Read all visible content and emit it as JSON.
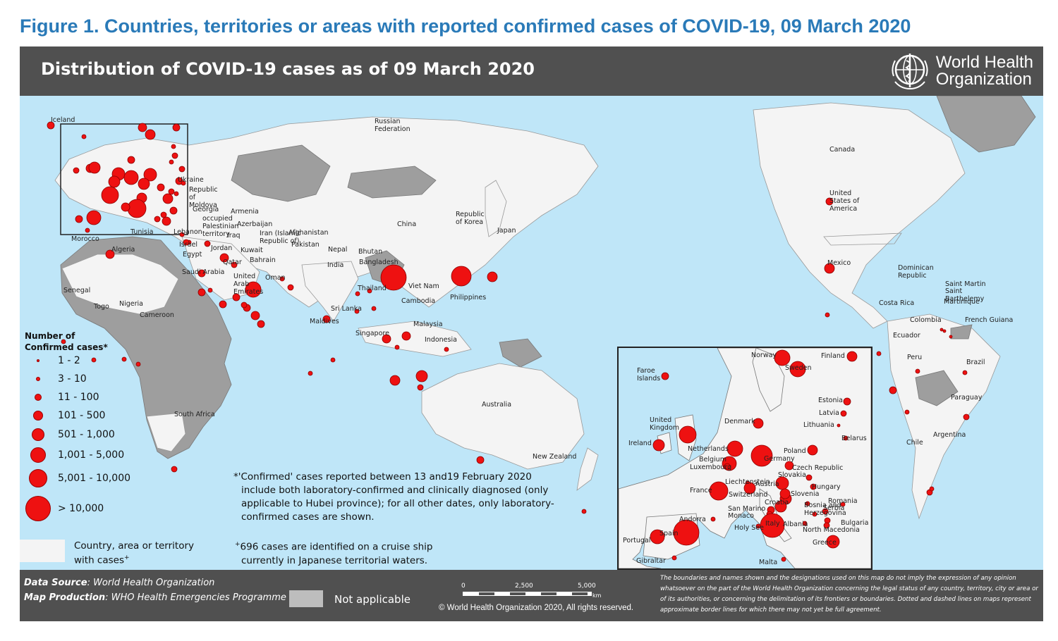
{
  "figure_title": "Figure 1. Countries, territories or areas with reported confirmed cases of COVID-19, 09 March 2020",
  "map_title": "Distribution of COVID-19 cases as of 09 March 2020",
  "logo": {
    "line1": "World Health",
    "line2": "Organization"
  },
  "colors": {
    "ocean": "#bfe6f8",
    "land_cases": "#f4f4f4",
    "land_na": "#9e9e9e",
    "header": "#505050",
    "bubble": "#ee1111",
    "title": "#2a7ab8"
  },
  "legend": {
    "title_line1": "Number of",
    "title_line2": "Confirmed cases*",
    "classes": [
      {
        "label": "1 - 2",
        "icon": "bubble-icon"
      },
      {
        "label": "3 - 10",
        "icon": "bubble-icon"
      },
      {
        "label": "11 - 100",
        "icon": "bubble-icon"
      },
      {
        "label": "101 - 500",
        "icon": "bubble-icon"
      },
      {
        "label": "501 - 1,000",
        "icon": "bubble-icon"
      },
      {
        "label": "1,001 - 5,000",
        "icon": "bubble-icon"
      },
      {
        "label": "5,001 - 10,000",
        "icon": "bubble-icon"
      },
      {
        "label": "> 10,000",
        "icon": "bubble-icon"
      }
    ],
    "with_cases_line1": "Country, area or territory",
    "with_cases_line2": "with cases",
    "with_cases_sup": "+"
  },
  "note_confirmed": {
    "line1": "*'Confirmed' cases reported between 13 and19 February 2020",
    "line2": "include both laboratory-confirmed and clinically diagnosed (only",
    "line3": "applicable to Hubei province); for all other dates, only laboratory-",
    "line4": "confirmed cases are shown."
  },
  "note_cruise": {
    "sup": "+",
    "line1": "696 cases are identified on a cruise ship",
    "line2": "currently in Japanese territorial waters."
  },
  "footer": {
    "source_label": "Data Source",
    "source_value": ": World Health Organization",
    "production_label": "Map Production",
    "production_value": ": WHO Health Emergencies Programme",
    "not_applicable": "Not applicable",
    "scale_0": "0",
    "scale_2500": "2,500",
    "scale_5000": "5,000",
    "scale_unit": "km",
    "copyright": "© World Health Organization 2020, All rights reserved.",
    "disclaimer": "The boundaries and names shown and the designations used on this map do not imply the expression of any opinion whatsoever on the part of the World Health Organization concerning the legal status of any country, territory, city or area or of its authorities, or concerning the delimitation of its frontiers or boundaries. Dotted and dashed lines on maps represent approximate border lines for which there may not yet be full agreement."
  },
  "world_labels": {
    "iceland": "Iceland",
    "russia": "Russian Federation",
    "canada": "Canada",
    "usa": "United States of America",
    "mexico": "Mexico",
    "dominican": "Dominican Republic",
    "saint_martin": "Saint Martin",
    "saint_barthelemy": "Saint Barthelemy",
    "martinique": "Martinique",
    "costa_rica": "Costa Rica",
    "colombia": "Colombia",
    "french_guiana": "French Guiana",
    "ecuador": "Ecuador",
    "peru": "Peru",
    "brazil": "Brazil",
    "paraguay": "Paraguay",
    "chile": "Chile",
    "argentina": "Argentina",
    "ukraine": "Ukraine",
    "moldova": "Republic of Moldova",
    "georgia": "Georgia",
    "armenia": "Armenia",
    "azerbaijan": "Azerbaijan",
    "palestine": "occupied Palestinian territory",
    "iraq": "Iraq",
    "iran": "Iran (Islamic Republic of)",
    "afghanistan": "Afghanistan",
    "pakistan": "Pakistan",
    "nepal": "Nepal",
    "bhutan": "Bhutan",
    "india": "India",
    "bangladesh": "Bangladesh",
    "tunisia": "Tunisia",
    "lebanon": "Lebanon",
    "israel": "Israel",
    "egypt": "Egypt",
    "jordan": "Jordan",
    "kuwait": "Kuwait",
    "qatar": "Qatar",
    "bahrain": "Bahrain",
    "saudi": "Saudi Arabia",
    "uae": "United Arab Emirates",
    "oman": "Oman",
    "morocco": "Morocco",
    "algeria": "Algeria",
    "senegal": "Senegal",
    "togo": "Togo",
    "nigeria": "Nigeria",
    "cameroon": "Cameroon",
    "south_africa": "South Africa",
    "china": "China",
    "korea": "Republic of Korea",
    "japan": "Japan",
    "thailand": "Thailand",
    "viet_nam": "Viet Nam",
    "cambodia": "Cambodia",
    "philippines": "Philippines",
    "sri_lanka": "Sri Lanka",
    "maldives": "Maldives",
    "malaysia": "Malaysia",
    "singapore": "Singapore",
    "indonesia": "Indonesia",
    "australia": "Australia",
    "new_zealand": "New Zealand"
  },
  "inset_labels": {
    "norway": "Norway",
    "finland": "Finland",
    "sweden": "Sweden",
    "faroe": "Faroe Islands",
    "estonia": "Estonia",
    "latvia": "Latvia",
    "lithuania": "Lithuania",
    "denmark": "Denmark",
    "belarus": "Belarus",
    "uk": "United Kingdom",
    "ireland": "Ireland",
    "netherlands": "Netherlands",
    "poland": "Poland",
    "belgium": "Belgium",
    "luxembourg": "Luxembourg",
    "germany": "Germany",
    "czech": "Czech Republic",
    "slovakia": "Slovakia",
    "liechtenstein": "Liechtenstein",
    "austria": "Austria",
    "hungary": "Hungary",
    "france": "France",
    "switzerland": "Switzerland",
    "slovenia": "Slovenia",
    "romania": "Romania",
    "croatia": "Croatia",
    "bosnia": "Bosnia and Herzegovina",
    "serbia": "Serbia",
    "san_marino": "San Marino",
    "monaco": "Monaco",
    "andorra": "Andorra",
    "italy": "Italy",
    "bulgaria": "Bulgaria",
    "holy_see": "Holy See",
    "albania": "Albania",
    "north_macedonia": "North Macedonia",
    "portugal": "Portugal",
    "spain": "Spain",
    "greece": "Greece",
    "gibraltar": "Gibraltar",
    "malta": "Malta"
  }
}
